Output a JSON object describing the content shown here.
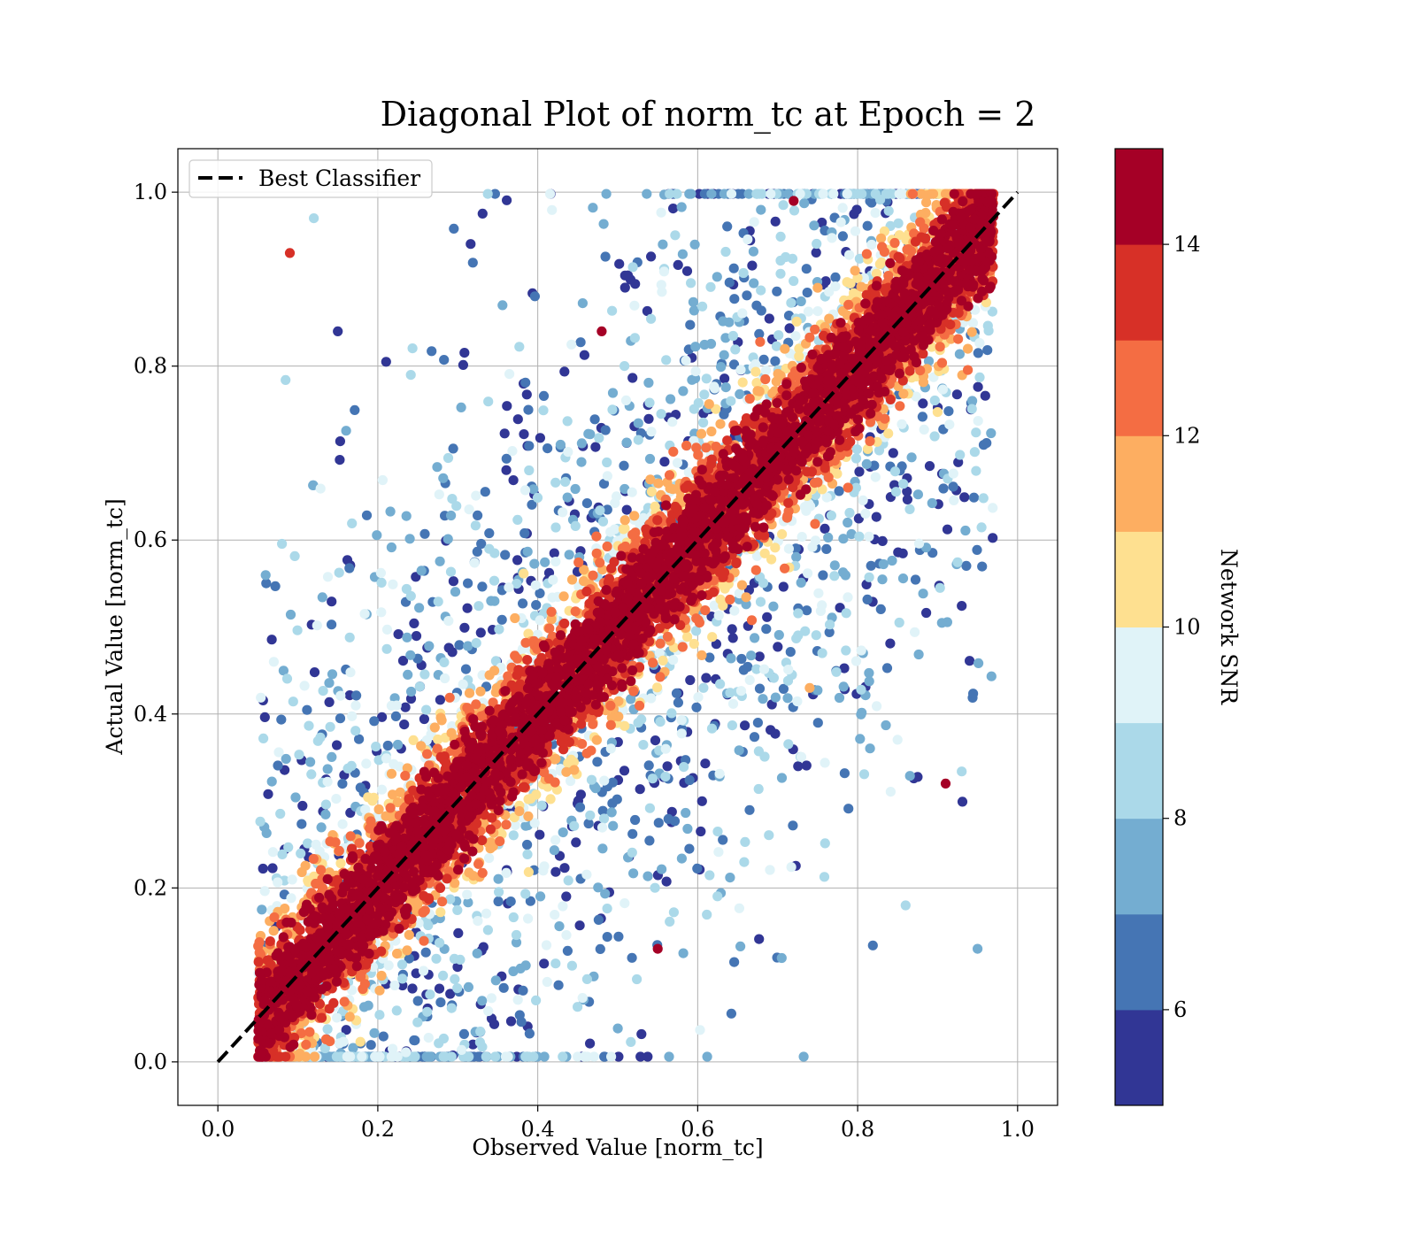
{
  "chart_data": {
    "type": "scatter",
    "title": "Diagonal Plot of norm_tc at Epoch = 2",
    "xlabel": "Observed Value [norm_tc]",
    "ylabel": "Actual Value [norm_tc]",
    "xlim": [
      -0.05,
      1.05
    ],
    "ylim": [
      -0.05,
      1.05
    ],
    "xticks": [
      "0.0",
      "0.2",
      "0.4",
      "0.6",
      "0.8",
      "1.0"
    ],
    "yticks": [
      "0.0",
      "0.2",
      "0.4",
      "0.6",
      "0.8",
      "1.0"
    ],
    "grid": true,
    "legend": {
      "position": "top-left",
      "entries": [
        "Best Classifier"
      ]
    },
    "reference_line": {
      "name": "Best Classifier",
      "style": "dashed",
      "color": "#000000",
      "points": [
        [
          0,
          0
        ],
        [
          1,
          1
        ]
      ]
    },
    "colorbar": {
      "label": "Network SNR",
      "min": 5,
      "max": 15,
      "ticks": [
        "6",
        "8",
        "10",
        "12",
        "14"
      ],
      "colors": [
        "#313695",
        "#4575b4",
        "#74add1",
        "#abd9e9",
        "#e0f3f8",
        "#fee090",
        "#fdae61",
        "#f46d43",
        "#d73027",
        "#a50026"
      ]
    },
    "points_sample": [
      {
        "x": 0.09,
        "y": 0.93,
        "snr": 13.5
      },
      {
        "x": 0.91,
        "y": 0.32,
        "snr": 14.8
      },
      {
        "x": 0.72,
        "y": 0.99,
        "snr": 14.8
      },
      {
        "x": 0.55,
        "y": 0.13,
        "snr": 14.8
      },
      {
        "x": 0.48,
        "y": 0.84,
        "snr": 14.8
      },
      {
        "x": 0.15,
        "y": 0.84,
        "snr": 5.5
      },
      {
        "x": 0.12,
        "y": 0.97,
        "snr": 8.5
      },
      {
        "x": 0.95,
        "y": 0.13,
        "snr": 7.0
      },
      {
        "x": 0.86,
        "y": 0.18,
        "snr": 8.5
      },
      {
        "x": 0.07,
        "y": 0.46,
        "snr": 9.5
      },
      {
        "x": 0.74,
        "y": 0.43,
        "snr": 11.5
      },
      {
        "x": 0.75,
        "y": 0.89,
        "snr": 11.0
      }
    ]
  }
}
